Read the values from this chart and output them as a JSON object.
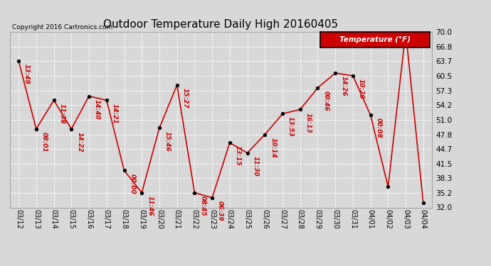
{
  "title": "Outdoor Temperature Daily High 20160405",
  "copyright_text": "Copyright 2016 Cartronics.com",
  "legend_label": "Temperature (°F)",
  "dates": [
    "03/12",
    "03/13",
    "03/14",
    "03/15",
    "03/16",
    "03/17",
    "03/18",
    "03/19",
    "03/20",
    "03/21",
    "03/22",
    "03/23",
    "03/24",
    "03/25",
    "03/26",
    "03/27",
    "03/28",
    "03/29",
    "03/30",
    "03/31",
    "04/01",
    "04/02",
    "04/03",
    "04/04"
  ],
  "values": [
    63.7,
    49.0,
    55.2,
    49.0,
    56.1,
    55.2,
    40.0,
    35.2,
    49.2,
    58.5,
    35.2,
    34.1,
    46.0,
    43.8,
    47.8,
    52.3,
    53.2,
    57.9,
    61.1,
    60.5,
    52.0,
    36.5,
    70.0,
    33.0
  ],
  "time_labels": [
    "13:49",
    "08:01",
    "11:38",
    "14:22",
    "14:40",
    "14:21",
    "00:00",
    "11:46",
    "15:46",
    "15:27",
    "08:45",
    "06:39",
    "13:15",
    "11:30",
    "10:14",
    "13:53",
    "16:13",
    "00:46",
    "14:26",
    "10:29",
    "00:08",
    "",
    "",
    ""
  ],
  "ylim": [
    32.0,
    70.0
  ],
  "yticks": [
    32.0,
    35.2,
    38.3,
    41.5,
    44.7,
    47.8,
    51.0,
    54.2,
    57.3,
    60.5,
    63.7,
    66.8,
    70.0
  ],
  "line_color": "#cc0000",
  "marker_color": "#000000",
  "bg_color": "#d8d8d8",
  "grid_color": "#ffffff",
  "title_fontsize": 11,
  "annot_fontsize": 6.5
}
